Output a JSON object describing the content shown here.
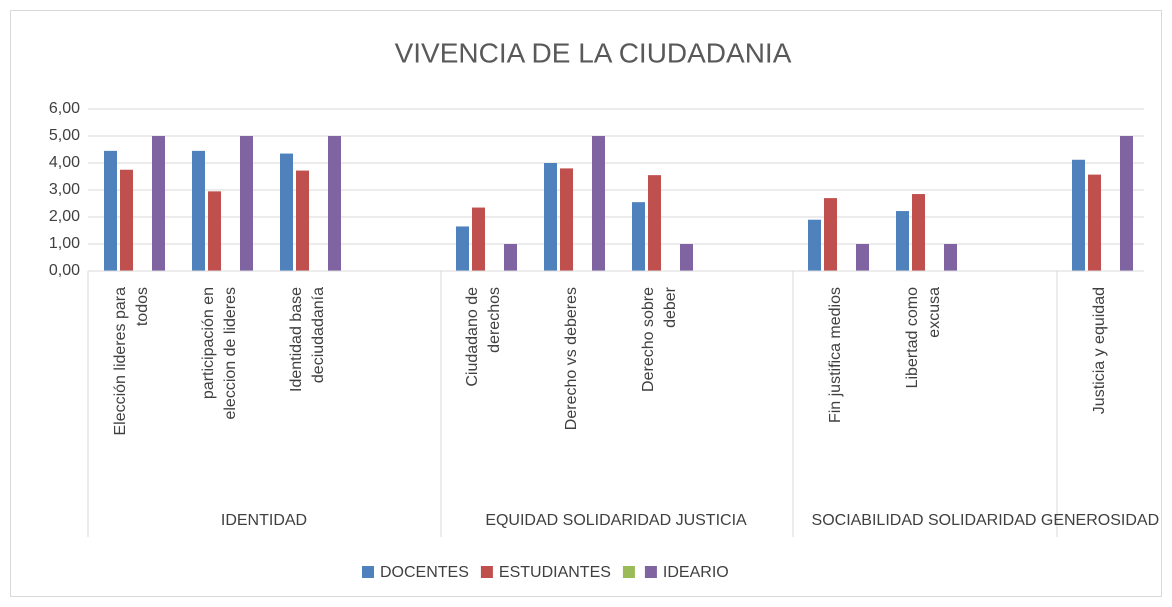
{
  "chart_data": {
    "type": "bar",
    "title": "VIVENCIA DE LA CIUDADANIA",
    "categories": [
      "Elección lideres para\ntodos",
      "participación en\neleccion de lideres",
      "Identidad base\ndeciudadanía",
      null,
      "Ciudadano de\nderechos",
      "Derecho vs deberes",
      "Derecho sobre\ndeber",
      null,
      "Fin justifica medios",
      "Libertad como\nexcusa",
      null,
      "Justicia y equidad"
    ],
    "groups": [
      "IDENTIDAD",
      "EQUIDAD SOLIDARIDAD JUSTICIA",
      "SOCIABILIDAD SOLIDARIDAD",
      "GENEROSIDAD"
    ],
    "series": [
      {
        "name": "DOCENTES",
        "color": "#4f81bd",
        "values": [
          4.45,
          4.45,
          4.35,
          null,
          1.65,
          4.0,
          2.55,
          null,
          1.9,
          2.22,
          null,
          4.12
        ]
      },
      {
        "name": "ESTUDIANTES",
        "color": "#c0504d",
        "values": [
          3.75,
          2.95,
          3.72,
          null,
          2.35,
          3.8,
          3.55,
          null,
          2.7,
          2.85,
          null,
          3.57
        ]
      },
      {
        "color": "#9bbb59",
        "values": [
          null,
          null,
          null,
          null,
          null,
          null,
          null,
          null,
          null,
          null,
          null,
          null
        ]
      },
      {
        "name": "IDEARIO",
        "color": "#8064a2",
        "values": [
          5,
          5,
          5,
          null,
          1,
          5,
          1,
          null,
          1,
          1,
          null,
          5
        ]
      }
    ],
    "ylim": [
      0,
      6
    ],
    "yticks": [
      {
        "value": 0,
        "label": "0,00"
      },
      {
        "value": 1,
        "label": "1,00"
      },
      {
        "value": 2,
        "label": "2,00"
      },
      {
        "value": 3,
        "label": "3,00"
      },
      {
        "value": 4,
        "label": "4,00"
      },
      {
        "value": 5,
        "label": "5,00"
      },
      {
        "value": 6,
        "label": "6,00"
      }
    ],
    "grid": true,
    "legend": "bottom"
  }
}
